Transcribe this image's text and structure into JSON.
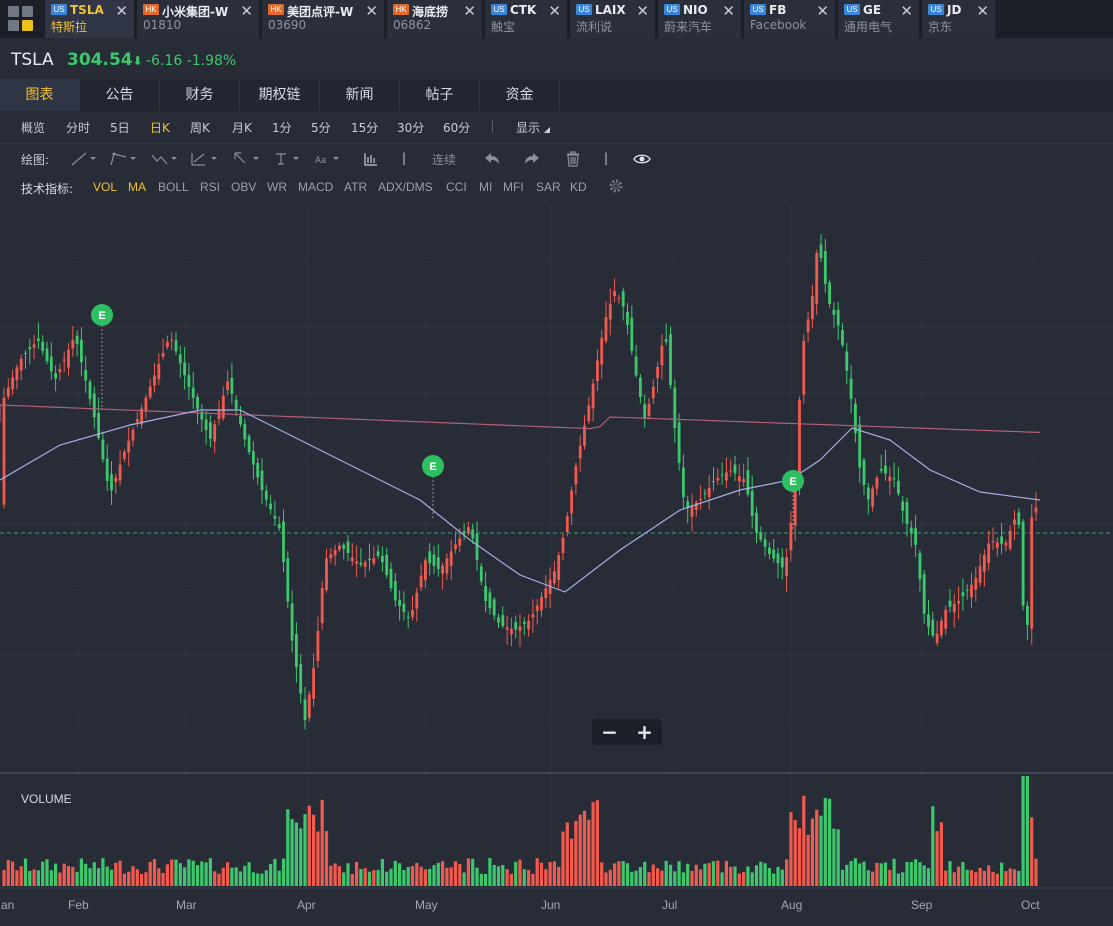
{
  "tabs": [
    {
      "market": "US",
      "symbol": "TSLA",
      "name": "特斯拉",
      "active": true
    },
    {
      "market": "HK",
      "symbol": "小米集团-W",
      "name": "01810",
      "active": false
    },
    {
      "market": "HK",
      "symbol": "美团点评-W",
      "name": "03690",
      "active": false
    },
    {
      "market": "HK",
      "symbol": "海底捞",
      "name": "06862",
      "active": false
    },
    {
      "market": "US",
      "symbol": "CTK",
      "name": "触宝",
      "active": false
    },
    {
      "market": "US",
      "symbol": "LAIX",
      "name": "流利说",
      "active": false
    },
    {
      "market": "US",
      "symbol": "NIO",
      "name": "蔚来汽车",
      "active": false
    },
    {
      "market": "US",
      "symbol": "FB",
      "name": "Facebook",
      "active": false
    },
    {
      "market": "US",
      "symbol": "GE",
      "name": "通用电气",
      "active": false
    },
    {
      "market": "US",
      "symbol": "JD",
      "name": "京东",
      "active": false
    }
  ],
  "quote": {
    "symbol": "TSLA",
    "price": "304.54",
    "arrow": "⬇",
    "change": "-6.16",
    "change_pct": "-1.98%"
  },
  "subtabs": [
    "图表",
    "公告",
    "财务",
    "期权链",
    "新闻",
    "帖子",
    "资金"
  ],
  "periods": [
    "概览",
    "分时",
    "5日",
    "日K",
    "周K",
    "月K",
    "1分",
    "5分",
    "15分",
    "30分",
    "60分"
  ],
  "active_period": "日K",
  "display_label": "显示",
  "drawing": {
    "label": "绘图:",
    "continuous": "连续"
  },
  "indicators": {
    "label": "技术指标:",
    "items": [
      "VOL",
      "MA",
      "BOLL",
      "RSI",
      "OBV",
      "WR",
      "MACD",
      "ATR",
      "ADX/DMS",
      "CCI",
      "MI",
      "MFI",
      "SAR",
      "KD"
    ],
    "active": [
      "VOL",
      "MA"
    ]
  },
  "chart": {
    "earnings_marker": "E",
    "volume_label": "VOLUME",
    "x_labels": [
      "an",
      "Feb",
      "Mar",
      "Apr",
      "May",
      "Jun",
      "Jul",
      "Aug",
      "Sep",
      "Oct"
    ]
  },
  "zoom": {
    "minus": "−",
    "plus": "+"
  },
  "colors": {
    "up": "#f25a4e",
    "down": "#3cc86c",
    "accent": "#f1c232",
    "ma_long": "#b0607a",
    "ma_mid": "#a8aee6"
  }
}
